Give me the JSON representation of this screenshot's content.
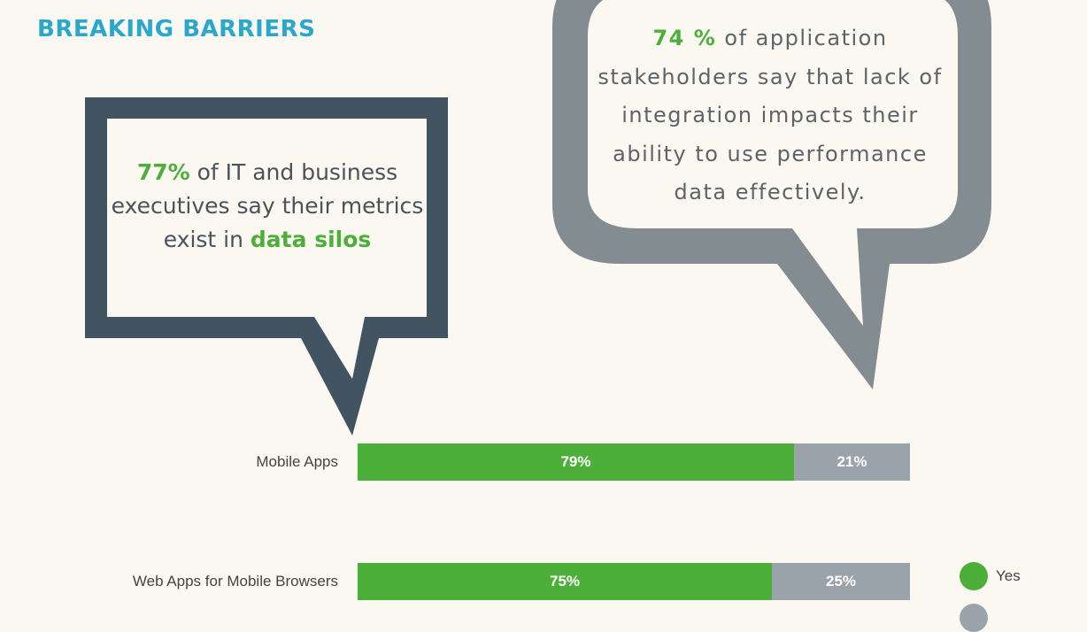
{
  "title": "BREAKING BARRIERS",
  "bubble_left": {
    "stat": "77%",
    "text_a": " of IT and business executives say their metrics exist in ",
    "highlight": "data silos"
  },
  "bubble_right": {
    "stat": "74 %",
    "text": " of application stakeholders say that lack of integration impacts their ability to use performance data effectively."
  },
  "colors": {
    "yes": "#4caf3a",
    "no": "#9aa3aa",
    "dark_bubble": "#425462",
    "grey_bubble": "#838c90"
  },
  "chart_data": {
    "type": "bar",
    "orientation": "horizontal",
    "stacked": true,
    "categories": [
      "Mobile Apps",
      "Web Apps for Mobile Browsers"
    ],
    "series": [
      {
        "name": "Yes",
        "values": [
          79,
          75
        ],
        "labels": [
          "79%",
          "75%"
        ]
      },
      {
        "name": "",
        "values": [
          21,
          25
        ],
        "labels": [
          "21%",
          "25%"
        ]
      }
    ],
    "xlim": [
      0,
      100
    ],
    "legend_position": "right"
  }
}
